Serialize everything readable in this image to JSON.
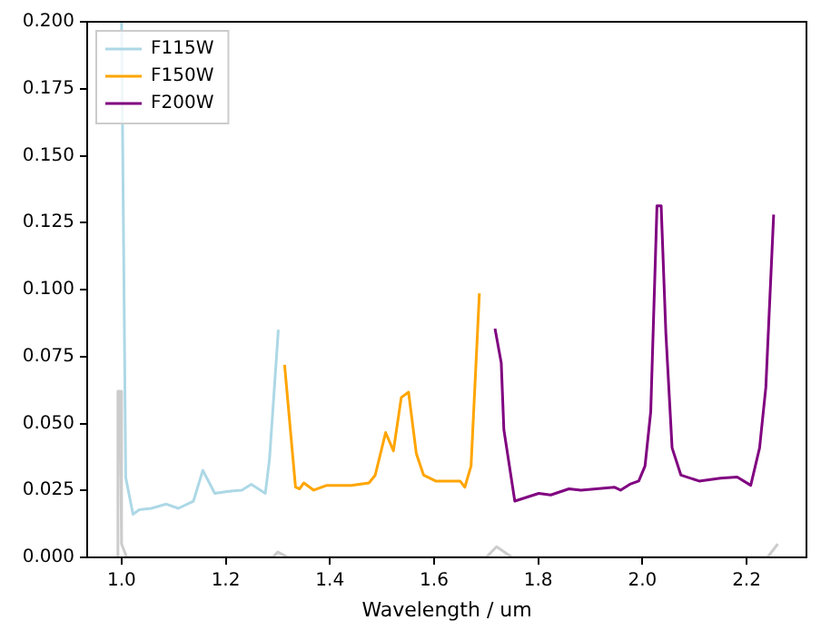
{
  "chart_data": {
    "type": "line",
    "xlabel": "Wavelength / um",
    "xlim": [
      0.934,
      2.315
    ],
    "xticks": [
      {
        "value": 1.0,
        "label": "1.0"
      },
      {
        "value": 1.2,
        "label": "1.2"
      },
      {
        "value": 1.4,
        "label": "1.4"
      },
      {
        "value": 1.6,
        "label": "1.6"
      },
      {
        "value": 1.8,
        "label": "1.8"
      },
      {
        "value": 2.0,
        "label": "2.0"
      },
      {
        "value": 2.2,
        "label": "2.2"
      }
    ],
    "ylim": [
      0,
      0.2
    ],
    "yticks": [
      {
        "value": 0,
        "label": "0.000"
      },
      {
        "value": 0.025,
        "label": "0.025"
      },
      {
        "value": 0.05,
        "label": "0.050"
      },
      {
        "value": 0.075,
        "label": "0.075"
      },
      {
        "value": 0.1,
        "label": "0.100"
      },
      {
        "value": 0.125,
        "label": "0.125"
      },
      {
        "value": 0.15,
        "label": "0.150"
      },
      {
        "value": 0.175,
        "label": "0.175"
      },
      {
        "value": 0.2,
        "label": "0.200"
      }
    ],
    "grid": false,
    "legend": "top left",
    "marker": "none",
    "line_style": "solid",
    "series": [
      {
        "color": "#cccccc",
        "x": [
          0.99,
          0.993,
          0.997,
          1.0,
          1.01,
          1.29,
          1.3,
          1.32,
          1.7,
          1.72,
          1.75,
          2.24,
          2.26
        ],
        "values": [
          0,
          0.062,
          0.062,
          0.005,
          0,
          0,
          0.002,
          0,
          0,
          0.004,
          0,
          0,
          0.005
        ]
      },
      {
        "name": "F115W",
        "color": "#add8e6",
        "x": [
          1.0,
          1.008,
          1.022,
          1.034,
          1.057,
          1.086,
          1.109,
          1.138,
          1.156,
          1.179,
          1.202,
          1.231,
          1.249,
          1.276,
          1.284,
          1.301
        ],
        "values": [
          0.2,
          0.0298,
          0.0161,
          0.0178,
          0.0183,
          0.0199,
          0.0183,
          0.021,
          0.0325,
          0.0239,
          0.0246,
          0.0251,
          0.0273,
          0.0239,
          0.0366,
          0.085
        ]
      },
      {
        "name": "F150W",
        "color": "#ffa500",
        "x": [
          1.313,
          1.334,
          1.342,
          1.35,
          1.369,
          1.394,
          1.441,
          1.475,
          1.487,
          1.507,
          1.522,
          1.537,
          1.551,
          1.566,
          1.58,
          1.603,
          1.65,
          1.659,
          1.671,
          1.687
        ],
        "values": [
          0.0719,
          0.0262,
          0.0256,
          0.0278,
          0.0251,
          0.0269,
          0.0269,
          0.0278,
          0.0307,
          0.0466,
          0.0398,
          0.0597,
          0.0617,
          0.0387,
          0.0307,
          0.0285,
          0.0285,
          0.0262,
          0.0341,
          0.0986
        ]
      },
      {
        "name": "F200W",
        "color": "#800080",
        "x": [
          1.717,
          1.729,
          1.734,
          1.755,
          1.801,
          1.824,
          1.859,
          1.882,
          1.946,
          1.958,
          1.976,
          1.993,
          2.005,
          2.016,
          2.028,
          2.036,
          2.045,
          2.057,
          2.074,
          2.109,
          2.15,
          2.182,
          2.208,
          2.225,
          2.237,
          2.252
        ],
        "values": [
          0.0854,
          0.0726,
          0.0477,
          0.021,
          0.0239,
          0.0233,
          0.0256,
          0.0251,
          0.0262,
          0.0251,
          0.0273,
          0.0285,
          0.0341,
          0.0544,
          0.1313,
          0.1313,
          0.0839,
          0.0409,
          0.0307,
          0.0285,
          0.0296,
          0.03,
          0.0269,
          0.0409,
          0.0635,
          0.128
        ]
      }
    ]
  }
}
